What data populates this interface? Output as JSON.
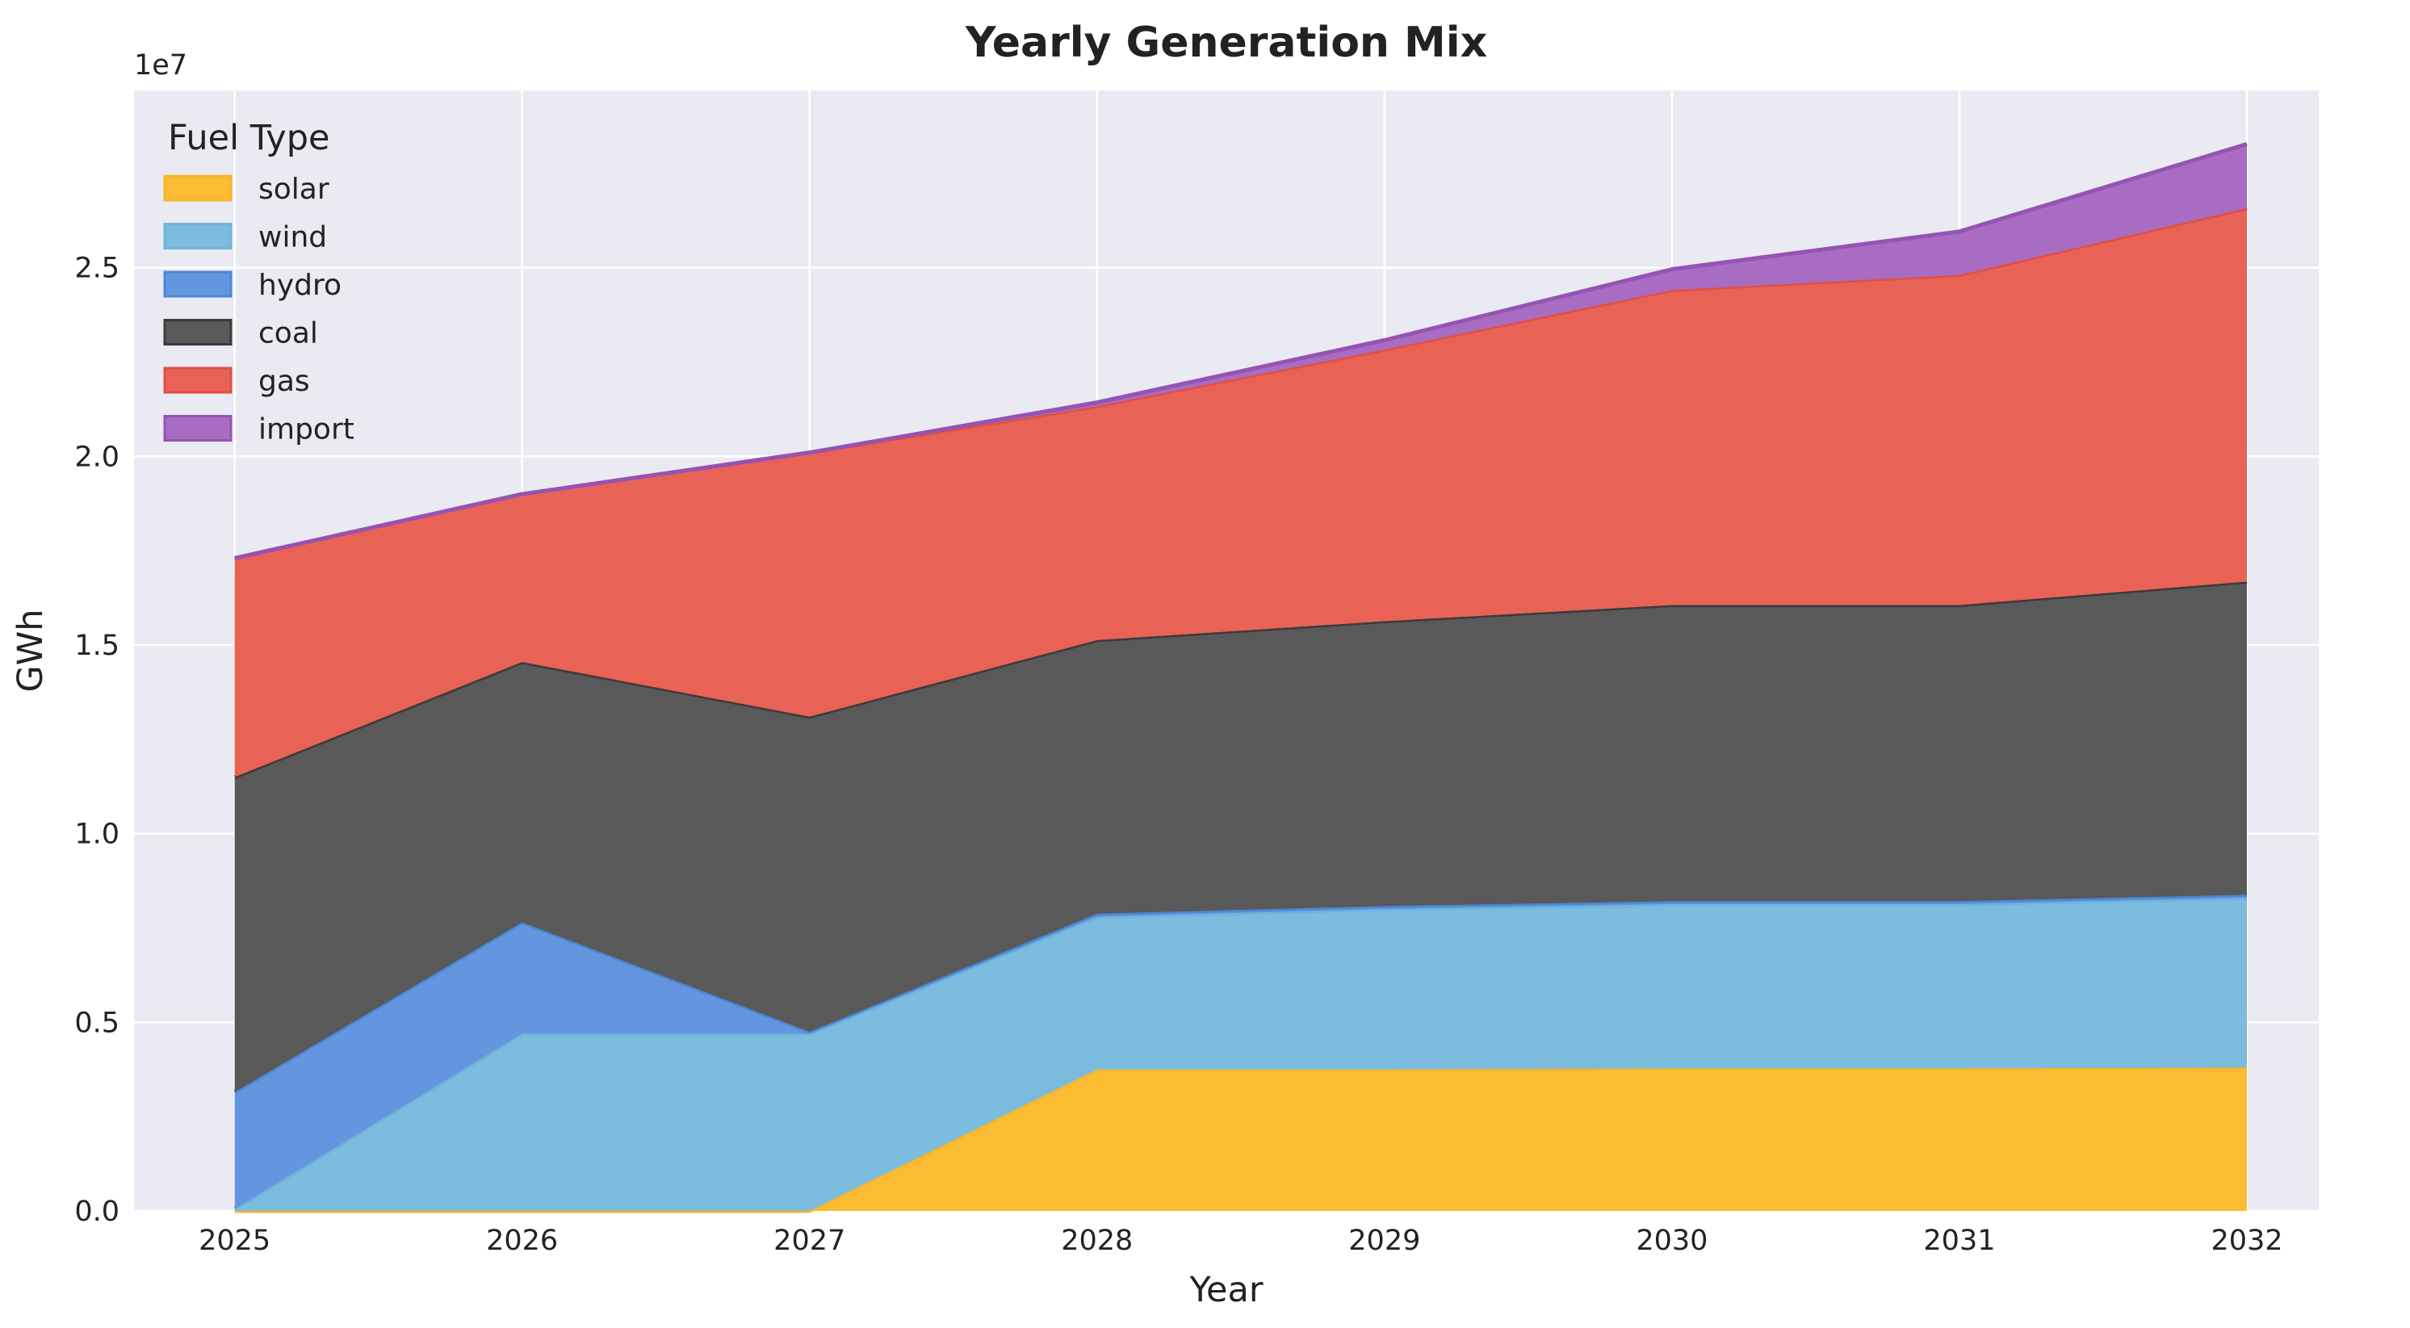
{
  "chart_data": {
    "type": "area",
    "stacked": true,
    "title": "Yearly Generation Mix",
    "xlabel": "Year",
    "ylabel": "GWh",
    "y_scale_label": "1e7",
    "y_scale_factor": 10000000,
    "x": [
      2025,
      2026,
      2027,
      2028,
      2029,
      2030,
      2031,
      2032
    ],
    "xlim": [
      2024.65,
      2032.25
    ],
    "ylim": [
      0,
      29700000
    ],
    "yticks": [
      0,
      5000000,
      10000000,
      15000000,
      20000000,
      25000000
    ],
    "ytick_labels": [
      "0.0",
      "0.5",
      "1.0",
      "1.5",
      "2.0",
      "2.5"
    ],
    "grid": true,
    "legend_title": "Fuel Type",
    "legend_position": "top-left",
    "series": [
      {
        "name": "solar",
        "color": "#fbbc33",
        "values": [
          0,
          0,
          0,
          3750000,
          3750000,
          3780000,
          3780000,
          3800000
        ]
      },
      {
        "name": "wind",
        "color": "#7bbcdf",
        "values": [
          50000,
          4700000,
          4700000,
          4050000,
          4250000,
          4350000,
          4350000,
          4500000
        ]
      },
      {
        "name": "hydro",
        "color": "#6496e0",
        "values": [
          3100000,
          2950000,
          50000,
          80000,
          80000,
          80000,
          80000,
          80000
        ]
      },
      {
        "name": "coal",
        "color": "#595959",
        "values": [
          8350000,
          6900000,
          8350000,
          7250000,
          7550000,
          7850000,
          7850000,
          8300000
        ]
      },
      {
        "name": "gas",
        "color": "#e96256",
        "values": [
          5800000,
          4450000,
          7000000,
          6200000,
          7200000,
          8350000,
          8750000,
          9900000
        ]
      },
      {
        "name": "import",
        "color": "#a86cc2",
        "values": [
          0,
          0,
          0,
          100000,
          250000,
          550000,
          1150000,
          1700000
        ]
      }
    ],
    "edge_colors": [
      "#f7b627",
      "#6fb4da",
      "#4a88d8",
      "#3c3a3a",
      "#e04f42",
      "#9553b3"
    ],
    "plot_background": "#eaeaf2"
  }
}
